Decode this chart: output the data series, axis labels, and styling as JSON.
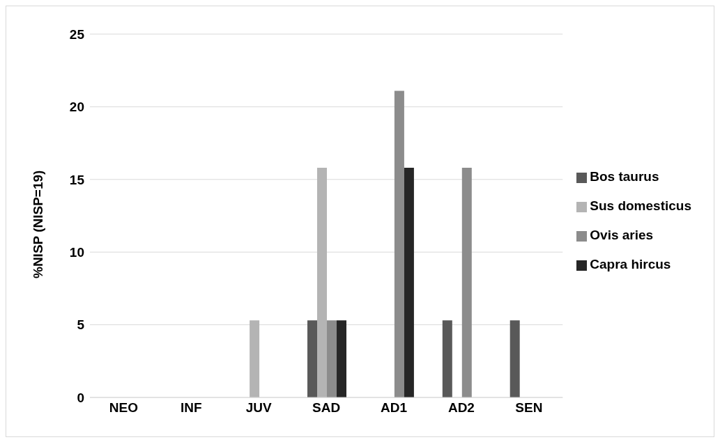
{
  "chart_data": {
    "type": "bar",
    "ylabel": "%NISP (NISP=19)",
    "categories": [
      "NEO",
      "INF",
      "JUV",
      "SAD",
      "AD1",
      "AD2",
      "SEN"
    ],
    "series": [
      {
        "name": "Bos taurus",
        "color": "#595959",
        "values": [
          0,
          0,
          0,
          5.3,
          0,
          5.3,
          5.3
        ]
      },
      {
        "name": "Sus domesticus",
        "color": "#b4b4b4",
        "values": [
          0,
          0,
          5.3,
          15.8,
          0,
          0,
          0
        ]
      },
      {
        "name": "Ovis aries",
        "color": "#8c8c8c",
        "values": [
          0,
          0,
          0,
          5.3,
          21.1,
          15.8,
          0
        ]
      },
      {
        "name": "Capra hircus",
        "color": "#262626",
        "values": [
          0,
          0,
          0,
          5.3,
          15.8,
          0,
          0
        ]
      }
    ],
    "ylim": [
      0,
      25
    ],
    "yticks": [
      0,
      5,
      10,
      15,
      20,
      25
    ],
    "grid": "y",
    "legend": "right"
  }
}
